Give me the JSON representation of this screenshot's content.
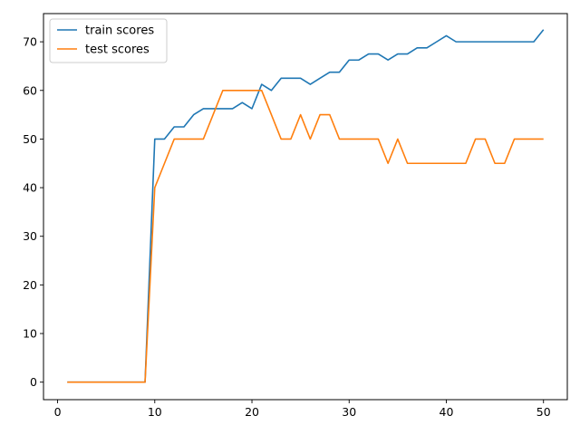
{
  "chart_data": {
    "type": "line",
    "title": "",
    "xlabel": "",
    "ylabel": "",
    "xlim": [
      -1.45,
      52.45
    ],
    "ylim": [
      -3.6,
      75.8
    ],
    "xticks": [
      0,
      10,
      20,
      30,
      40,
      50
    ],
    "yticks": [
      0,
      10,
      20,
      30,
      40,
      50,
      60,
      70
    ],
    "grid": false,
    "legend_position": "top-left",
    "x": [
      1,
      2,
      3,
      4,
      5,
      6,
      7,
      8,
      9,
      10,
      11,
      12,
      13,
      14,
      15,
      16,
      17,
      18,
      19,
      20,
      21,
      22,
      23,
      24,
      25,
      26,
      27,
      28,
      29,
      30,
      31,
      32,
      33,
      34,
      35,
      36,
      37,
      38,
      39,
      40,
      41,
      42,
      43,
      44,
      45,
      46,
      47,
      48,
      49,
      50
    ],
    "series": [
      {
        "name": "train scores",
        "color": "#1f77b4",
        "values": [
          0,
          0,
          0,
          0,
          0,
          0,
          0,
          0,
          0,
          50,
          50,
          52.5,
          52.5,
          55,
          56.25,
          56.25,
          56.25,
          56.25,
          57.5,
          56.25,
          61.25,
          60,
          62.5,
          62.5,
          62.5,
          61.25,
          62.5,
          63.75,
          63.75,
          66.25,
          66.25,
          67.5,
          67.5,
          66.25,
          67.5,
          67.5,
          68.75,
          68.75,
          70,
          71.25,
          70,
          70,
          70,
          70,
          70,
          70,
          70,
          70,
          70,
          72.5
        ]
      },
      {
        "name": "test scores",
        "color": "#ff7f0e",
        "values": [
          0,
          0,
          0,
          0,
          0,
          0,
          0,
          0,
          0,
          40,
          45,
          50,
          50,
          50,
          50,
          55,
          60,
          60,
          60,
          60,
          60,
          55,
          50,
          50,
          55,
          50,
          55,
          55,
          50,
          50,
          50,
          50,
          50,
          45,
          50,
          45,
          45,
          45,
          45,
          45,
          45,
          45,
          50,
          50,
          45,
          45,
          50,
          50,
          50,
          50
        ]
      }
    ]
  }
}
